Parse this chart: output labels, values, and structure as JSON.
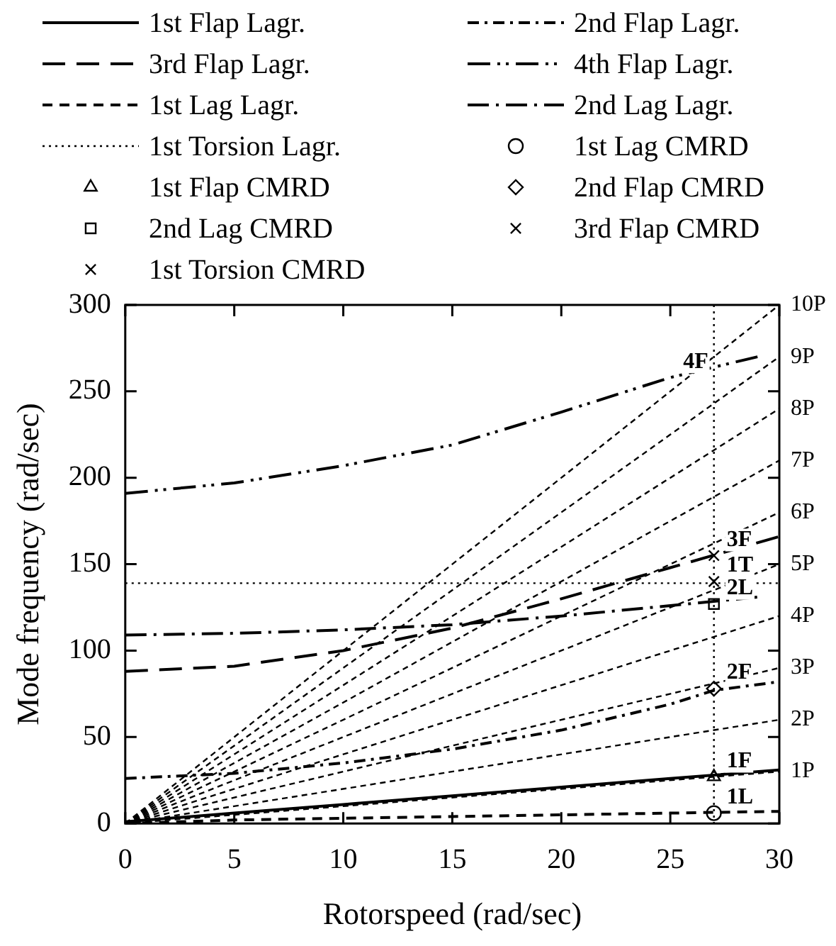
{
  "chart_data": {
    "type": "line",
    "xlabel": "Rotorspeed (rad/sec)",
    "ylabel": "Mode frequency (rad/sec)",
    "xlim": [
      0,
      30
    ],
    "xticks": [
      0,
      5,
      10,
      15,
      20,
      25,
      30
    ],
    "ylim": [
      0,
      300
    ],
    "yticks": [
      0,
      50,
      100,
      150,
      200,
      250,
      300
    ],
    "grid": false,
    "legend": "top",
    "series": [
      {
        "name": "1st Flap Lagr.",
        "color": "#000000",
        "line_style": "solid",
        "x": [
          0,
          5,
          10,
          15,
          20,
          25,
          30
        ],
        "values": [
          1,
          6,
          11,
          16,
          21,
          26,
          31
        ]
      },
      {
        "name": "2nd Flap Lagr.",
        "color": "#000000",
        "line_style": "dashdot",
        "x": [
          0,
          5,
          10,
          15,
          20,
          25,
          27,
          30
        ],
        "values": [
          26,
          29,
          35,
          43,
          54,
          69,
          77,
          82
        ]
      },
      {
        "name": "3rd Flap Lagr.",
        "color": "#000000",
        "line_style": "longdash",
        "x": [
          0,
          5,
          10,
          15,
          20,
          25,
          30
        ],
        "values": [
          88,
          91,
          100,
          113,
          130,
          148,
          166
        ]
      },
      {
        "name": "4th Flap Lagr.",
        "color": "#000000",
        "line_style": "dashdotdot",
        "x": [
          0,
          5,
          10,
          15,
          20,
          25,
          29
        ],
        "values": [
          191,
          197,
          207,
          219,
          238,
          258,
          270
        ]
      },
      {
        "name": "1st Lag Lagr.",
        "color": "#000000",
        "line_style": "dashed",
        "x": [
          0,
          5,
          10,
          15,
          20,
          25,
          30
        ],
        "values": [
          0,
          2,
          3,
          4,
          5,
          6,
          7
        ]
      },
      {
        "name": "2nd Lag Lagr.",
        "color": "#000000",
        "line_style": "longdashdot",
        "x": [
          0,
          5,
          10,
          15,
          20,
          25,
          29
        ],
        "values": [
          109,
          110,
          112,
          115,
          120,
          126,
          131
        ]
      },
      {
        "name": "1st Torsion Lagr.",
        "color": "#000000",
        "line_style": "dotted",
        "x": [
          0,
          30
        ],
        "values": [
          139,
          139
        ]
      },
      {
        "name": "1st Lag CMRD",
        "type": "scatter",
        "color": "#000000",
        "marker": "circle",
        "x": [
          27
        ],
        "values": [
          6
        ]
      },
      {
        "name": "1st Flap CMRD",
        "type": "scatter",
        "color": "#000000",
        "marker": "triangle",
        "x": [
          27
        ],
        "values": [
          27
        ]
      },
      {
        "name": "2nd Flap CMRD",
        "type": "scatter",
        "color": "#000000",
        "marker": "diamond",
        "x": [
          27
        ],
        "values": [
          78
        ]
      },
      {
        "name": "2nd Lag CMRD",
        "type": "scatter",
        "color": "#000000",
        "marker": "square",
        "x": [
          27
        ],
        "values": [
          127
        ]
      },
      {
        "name": "3rd Flap CMRD",
        "type": "scatter",
        "color": "#000000",
        "marker": "cross",
        "x": [
          27
        ],
        "values": [
          155
        ]
      },
      {
        "name": "1st Torsion CMRD",
        "type": "scatter",
        "color": "#000000",
        "marker": "cross",
        "x": [
          27
        ],
        "values": [
          140
        ]
      },
      {
        "color": "#000000",
        "line_style": "fine",
        "x": [
          0,
          30
        ],
        "values": [
          0,
          30
        ]
      },
      {
        "color": "#000000",
        "line_style": "fine",
        "x": [
          0,
          30
        ],
        "values": [
          0,
          60
        ]
      },
      {
        "color": "#000000",
        "line_style": "fine",
        "x": [
          0,
          30
        ],
        "values": [
          0,
          90
        ]
      },
      {
        "color": "#000000",
        "line_style": "fine",
        "x": [
          0,
          30
        ],
        "values": [
          0,
          120
        ]
      },
      {
        "color": "#000000",
        "line_style": "fine",
        "x": [
          0,
          30
        ],
        "values": [
          0,
          150
        ]
      },
      {
        "color": "#000000",
        "line_style": "fine",
        "x": [
          0,
          30
        ],
        "values": [
          0,
          180
        ]
      },
      {
        "color": "#000000",
        "line_style": "fine",
        "x": [
          0,
          30
        ],
        "values": [
          0,
          210
        ]
      },
      {
        "color": "#000000",
        "line_style": "fine",
        "x": [
          0,
          30
        ],
        "values": [
          0,
          240
        ]
      },
      {
        "color": "#000000",
        "line_style": "fine",
        "x": [
          0,
          30
        ],
        "values": [
          0,
          270
        ]
      },
      {
        "color": "#000000",
        "line_style": "fine",
        "x": [
          0,
          30
        ],
        "values": [
          0,
          300
        ]
      }
    ],
    "ref_lines": [
      {
        "axis": "x",
        "value": 27,
        "line_style": "dotted",
        "color": "#000000"
      }
    ],
    "annotations": [
      {
        "text": "1P",
        "x": 30,
        "y": 30
      },
      {
        "text": "2P",
        "x": 30,
        "y": 60
      },
      {
        "text": "3P",
        "x": 30,
        "y": 90
      },
      {
        "text": "4P",
        "x": 30,
        "y": 120
      },
      {
        "text": "5P",
        "x": 30,
        "y": 150
      },
      {
        "text": "6P",
        "x": 30,
        "y": 180
      },
      {
        "text": "7P",
        "x": 30,
        "y": 210
      },
      {
        "text": "8P",
        "x": 30,
        "y": 240
      },
      {
        "text": "9P",
        "x": 30,
        "y": 270
      },
      {
        "text": "10P",
        "x": 30,
        "y": 300
      },
      {
        "text": "1L",
        "x": 27,
        "y": 6
      },
      {
        "text": "1F",
        "x": 27,
        "y": 27
      },
      {
        "text": "2F",
        "x": 27,
        "y": 78
      },
      {
        "text": "2L",
        "x": 27,
        "y": 127
      },
      {
        "text": "1T",
        "x": 27,
        "y": 140
      },
      {
        "text": "3F",
        "x": 27,
        "y": 155
      },
      {
        "text": "4F",
        "x": 25,
        "y": 258
      }
    ]
  }
}
